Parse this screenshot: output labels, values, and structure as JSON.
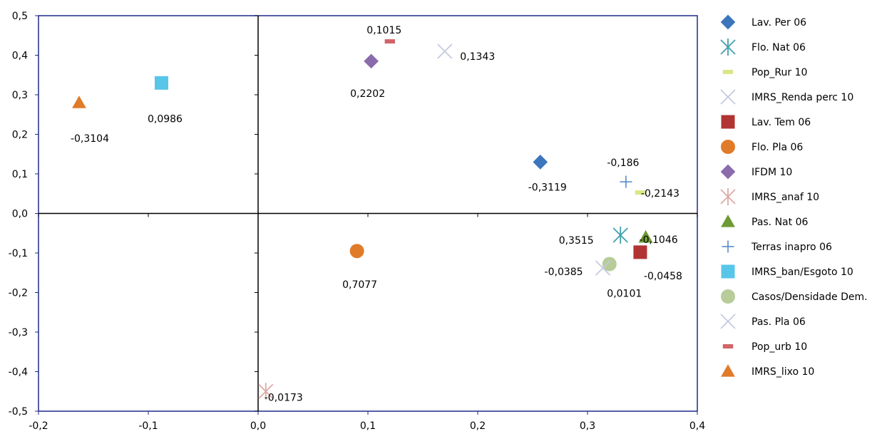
{
  "chart_data": {
    "type": "scatter",
    "title": "",
    "xlabel": "",
    "ylabel": "",
    "xlim": [
      -0.2,
      0.4
    ],
    "ylim": [
      -0.5,
      0.5
    ],
    "x_ticks": [
      "-0,2",
      "-0,1",
      "0,0",
      "0,1",
      "0,2",
      "0,3",
      "0,4"
    ],
    "y_ticks": [
      "0,5",
      "0,4",
      "0,3",
      "0,2",
      "0,1",
      "0,0",
      "-0,1",
      "-0,2",
      "-0,3",
      "-0,4",
      "-0,5"
    ],
    "grid": false,
    "legend_position": "right",
    "series": [
      {
        "name": "Lav. Per 06",
        "marker": "diamond",
        "color": "#3b76bd",
        "x": 0.257,
        "y": 0.13,
        "label": "-0,3119"
      },
      {
        "name": "Flo. Nat 06",
        "marker": "asterisk",
        "color": "#3fa0ad",
        "x": 0.33,
        "y": -0.055,
        "label": "0,3515"
      },
      {
        "name": "Pop_Rur 10",
        "marker": "dash",
        "color": "#dbe68a",
        "x": 0.348,
        "y": 0.053,
        "label": "-0,2143"
      },
      {
        "name": "IMRS_Renda perc 10",
        "marker": "x",
        "color": "#c4cadf",
        "x": 0.17,
        "y": 0.41,
        "label": "0,1343"
      },
      {
        "name": "Lav. Tem 06",
        "marker": "square",
        "color": "#b23333",
        "x": 0.348,
        "y": -0.098,
        "label": "-0,0458"
      },
      {
        "name": "Flo. Pla 06",
        "marker": "circle",
        "color": "#e07b2a",
        "x": 0.09,
        "y": -0.095,
        "label": "0,7077"
      },
      {
        "name": "IFDM 10",
        "marker": "diamond",
        "color": "#8a6bab",
        "x": 0.103,
        "y": 0.385,
        "label": "0,2202"
      },
      {
        "name": "IMRS_anaf 10",
        "marker": "asterisk",
        "color": "#dcaaa6",
        "x": 0.007,
        "y": -0.45,
        "label": "-0,0173"
      },
      {
        "name": "Pas. Nat 06",
        "marker": "triangle",
        "color": "#6e9a35",
        "x": 0.353,
        "y": -0.06,
        "label": "-0,1046"
      },
      {
        "name": "Terras inapro 06",
        "marker": "plus",
        "color": "#4a84c8",
        "x": 0.335,
        "y": 0.08,
        "label": "-0,186"
      },
      {
        "name": "IMRS_ban/Esgoto 10",
        "marker": "square",
        "color": "#57c6e8",
        "x": -0.088,
        "y": 0.33,
        "label": "0,0986"
      },
      {
        "name": "Casos/Densidade Dem.",
        "marker": "circle",
        "color": "#b7cc99",
        "x": 0.32,
        "y": -0.128,
        "label": "0,0101"
      },
      {
        "name": "Pas. Pla 06",
        "marker": "x",
        "color": "#c4cadf",
        "x": 0.314,
        "y": -0.138,
        "label": "-0,0385"
      },
      {
        "name": "Pop_urb 10",
        "marker": "dash",
        "color": "#d06468",
        "x": 0.12,
        "y": 0.435,
        "label": "0,1015"
      },
      {
        "name": "IMRS_lixo 10",
        "marker": "triangle",
        "color": "#e07b2a",
        "x": -0.163,
        "y": 0.28,
        "label": "-0,3104"
      }
    ]
  }
}
